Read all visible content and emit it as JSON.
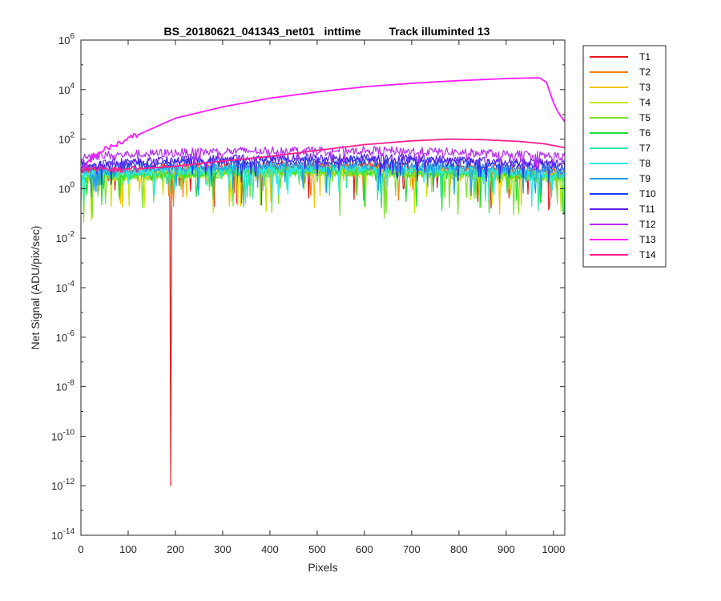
{
  "chart_data": {
    "type": "line",
    "title": "BS_20180621_041343_net01   inttime         Track illuminted 13",
    "xlabel": "Pixels",
    "ylabel": "Net Signal (ADU/pix/sec)",
    "xlim": [
      0,
      1024
    ],
    "ylim_log10": [
      -14,
      6
    ],
    "yscale": "log",
    "grid": false,
    "legend_position": "outside-right-top",
    "x_ticks": [
      0,
      100,
      200,
      300,
      400,
      500,
      600,
      700,
      800,
      900,
      1000
    ],
    "y_tick_exponents": [
      -14,
      -12,
      -10,
      -8,
      -6,
      -4,
      -2,
      0,
      2,
      4,
      6
    ],
    "y_tick_base": "10",
    "series": [
      {
        "name": "T1",
        "color": "#e41a1c",
        "level": 5,
        "noise": 1.0,
        "dip_at": 190,
        "dip_value": 1e-12
      },
      {
        "name": "T2",
        "color": "#f47d12",
        "level": 4,
        "noise": 0.9
      },
      {
        "name": "T3",
        "color": "#f5c400",
        "level": 3,
        "noise": 1.0
      },
      {
        "name": "T4",
        "color": "#c8e600",
        "level": 2.5,
        "noise": 1.1
      },
      {
        "name": "T5",
        "color": "#7ce02c",
        "level": 2.5,
        "noise": 1.1
      },
      {
        "name": "T6",
        "color": "#22dd3a",
        "level": 3,
        "noise": 1.0
      },
      {
        "name": "T7",
        "color": "#2ee6a8",
        "level": 3.5,
        "noise": 0.9
      },
      {
        "name": "T8",
        "color": "#27e9ee",
        "level": 4,
        "noise": 0.8
      },
      {
        "name": "T9",
        "color": "#1f9bf0",
        "level": 5,
        "noise": 0.7
      },
      {
        "name": "T10",
        "color": "#1a3ff0",
        "level": 8,
        "noise": 0.5
      },
      {
        "name": "T11",
        "color": "#5a1fe8",
        "level": 10,
        "noise": 0.5
      },
      {
        "name": "T12",
        "color": "#b42bf0",
        "level": 20,
        "noise": 0.3
      },
      {
        "name": "T13",
        "color": "#ff19ff",
        "points": [
          [
            0,
            5
          ],
          [
            30,
            25
          ],
          [
            100,
            100
          ],
          [
            200,
            700
          ],
          [
            300,
            2000
          ],
          [
            400,
            4500
          ],
          [
            500,
            8000
          ],
          [
            600,
            13000
          ],
          [
            700,
            18000
          ],
          [
            800,
            23000
          ],
          [
            900,
            28000
          ],
          [
            970,
            30000
          ],
          [
            985,
            20000
          ],
          [
            1000,
            3000
          ],
          [
            1010,
            1200
          ],
          [
            1024,
            500
          ]
        ]
      },
      {
        "name": "T14",
        "color": "#ff1f8f",
        "points": [
          [
            0,
            6
          ],
          [
            100,
            6
          ],
          [
            200,
            8
          ],
          [
            300,
            13
          ],
          [
            400,
            20
          ],
          [
            500,
            35
          ],
          [
            600,
            60
          ],
          [
            700,
            85
          ],
          [
            780,
            100
          ],
          [
            850,
            95
          ],
          [
            930,
            80
          ],
          [
            980,
            65
          ],
          [
            1024,
            45
          ]
        ]
      }
    ]
  }
}
